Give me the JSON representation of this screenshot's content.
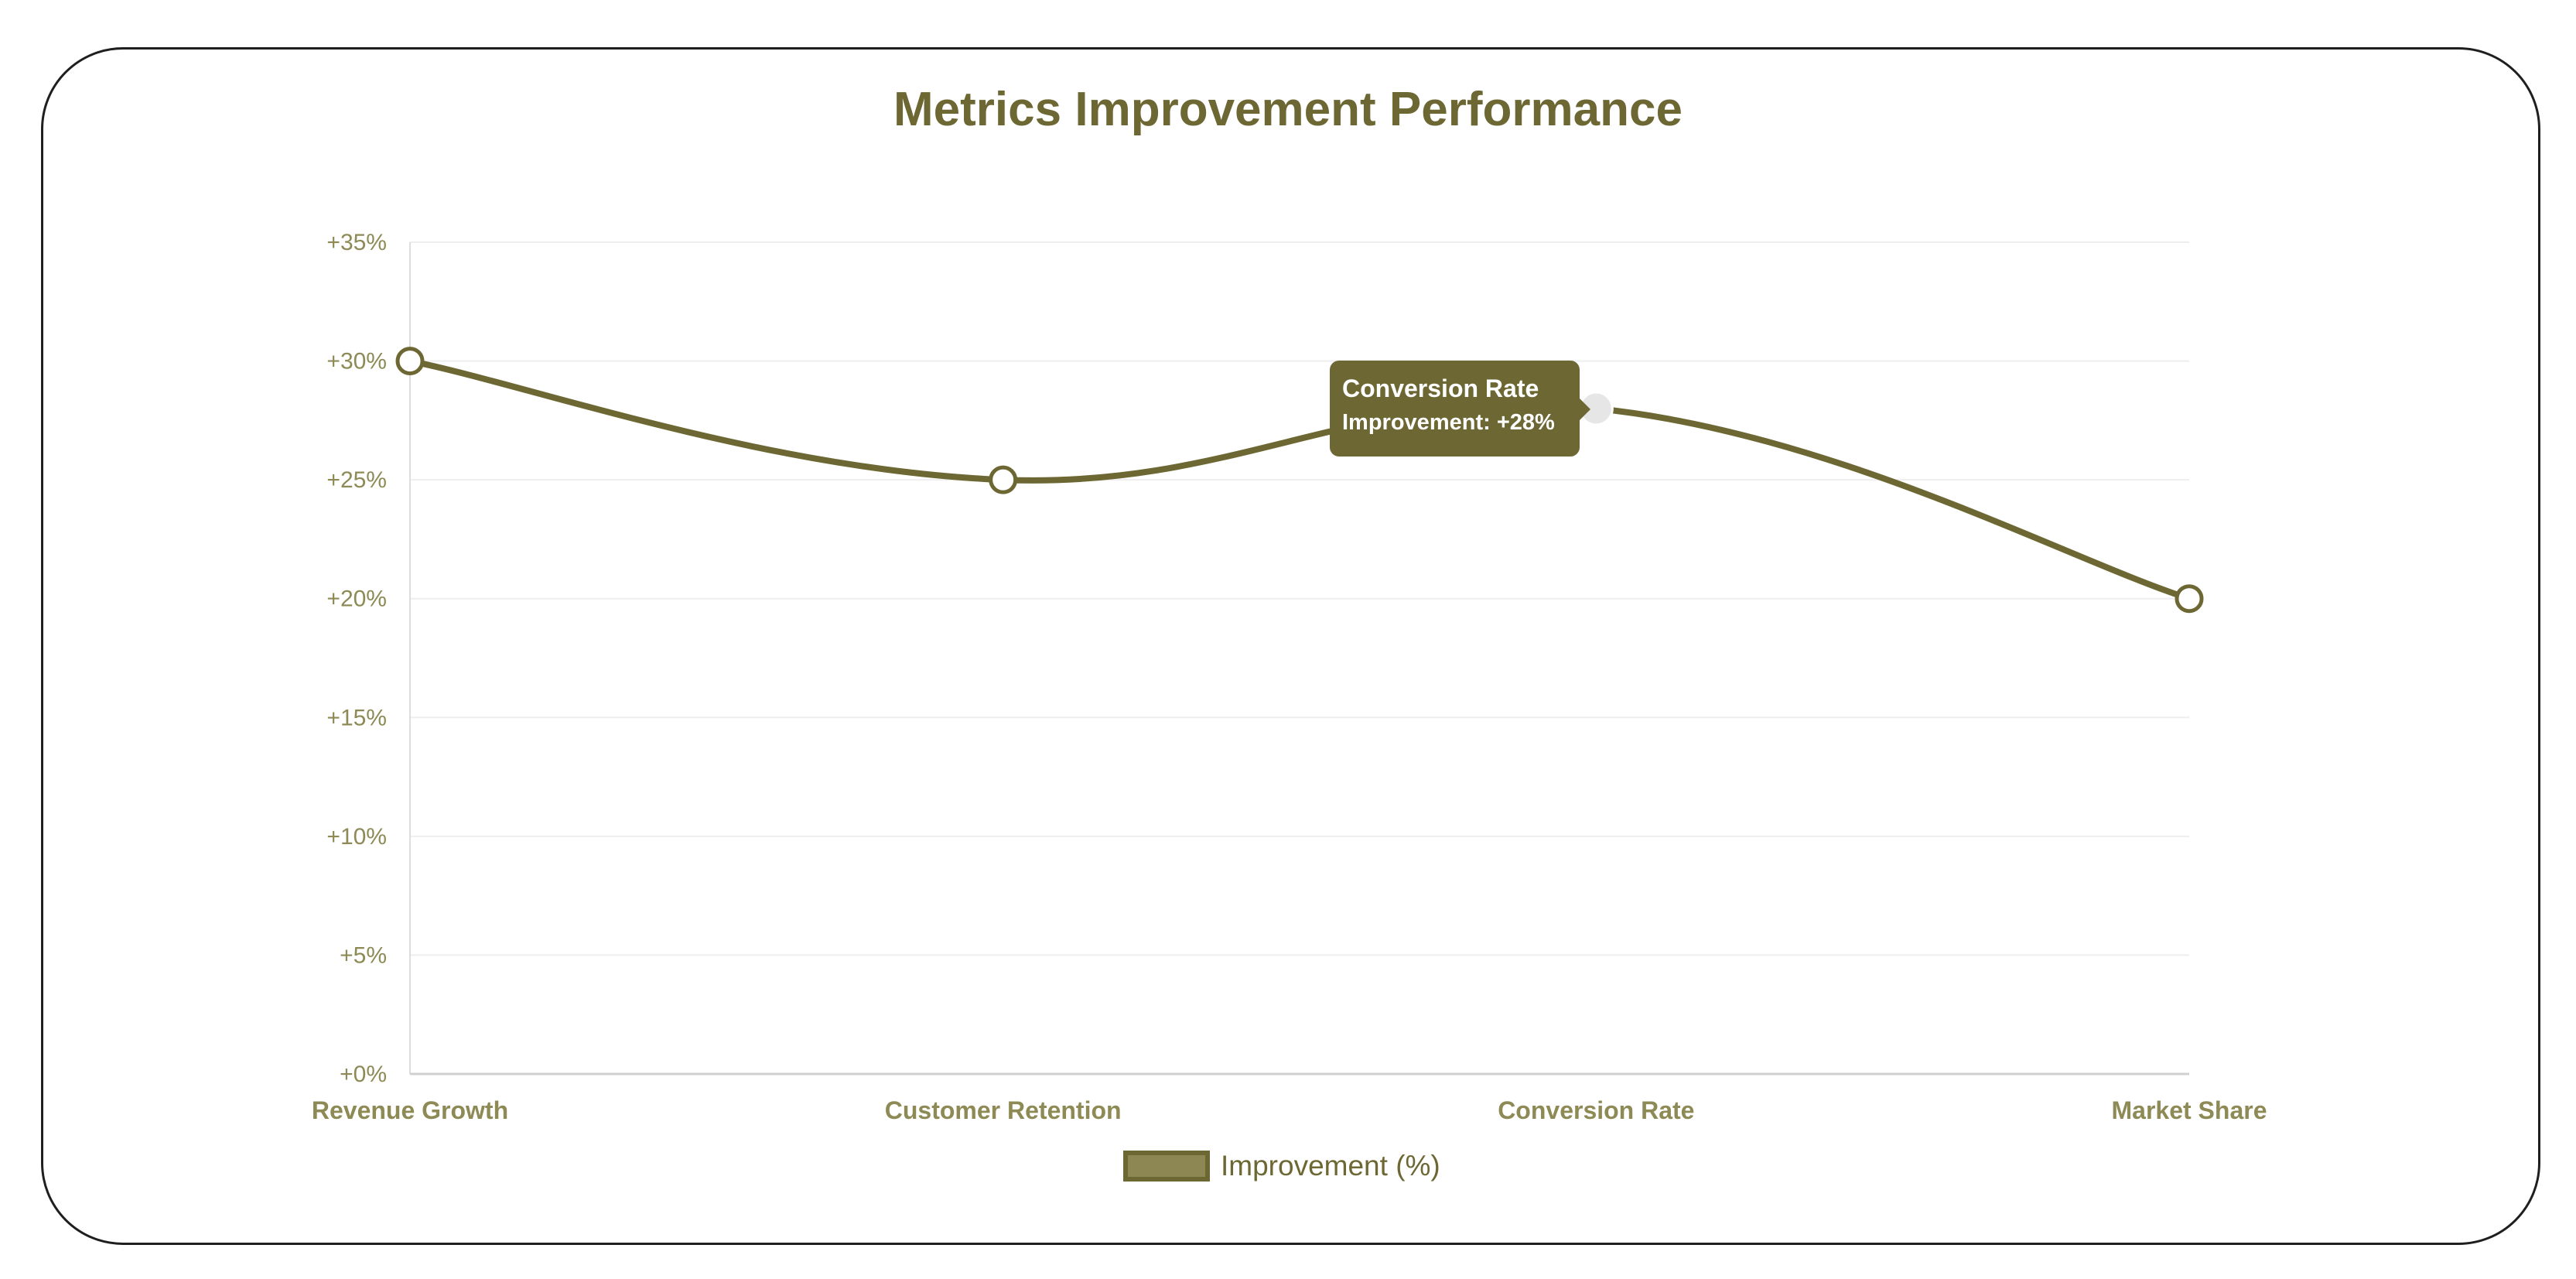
{
  "chart_data": {
    "type": "line",
    "title": "Metrics Improvement Performance",
    "categories": [
      "Revenue Growth",
      "Customer Retention",
      "Conversion Rate",
      "Market Share"
    ],
    "series": [
      {
        "name": "Improvement (%)",
        "values": [
          30,
          25,
          28,
          20
        ]
      }
    ],
    "ylim": [
      0,
      35
    ],
    "yticks": [
      0,
      5,
      10,
      15,
      20,
      25,
      30,
      35
    ],
    "ytick_labels": [
      "+0%",
      "+5%",
      "+10%",
      "+15%",
      "+20%",
      "+25%",
      "+30%",
      "+35%"
    ],
    "xlabel": "",
    "ylabel": "",
    "grid": true,
    "legend": "bottom",
    "colors": {
      "line": "#6d6833",
      "tick": "#8d8a55",
      "grid": "#eeeeee"
    },
    "tooltip": {
      "title": "Conversion Rate",
      "body": "Improvement: +28%",
      "category": "Conversion Rate"
    }
  }
}
